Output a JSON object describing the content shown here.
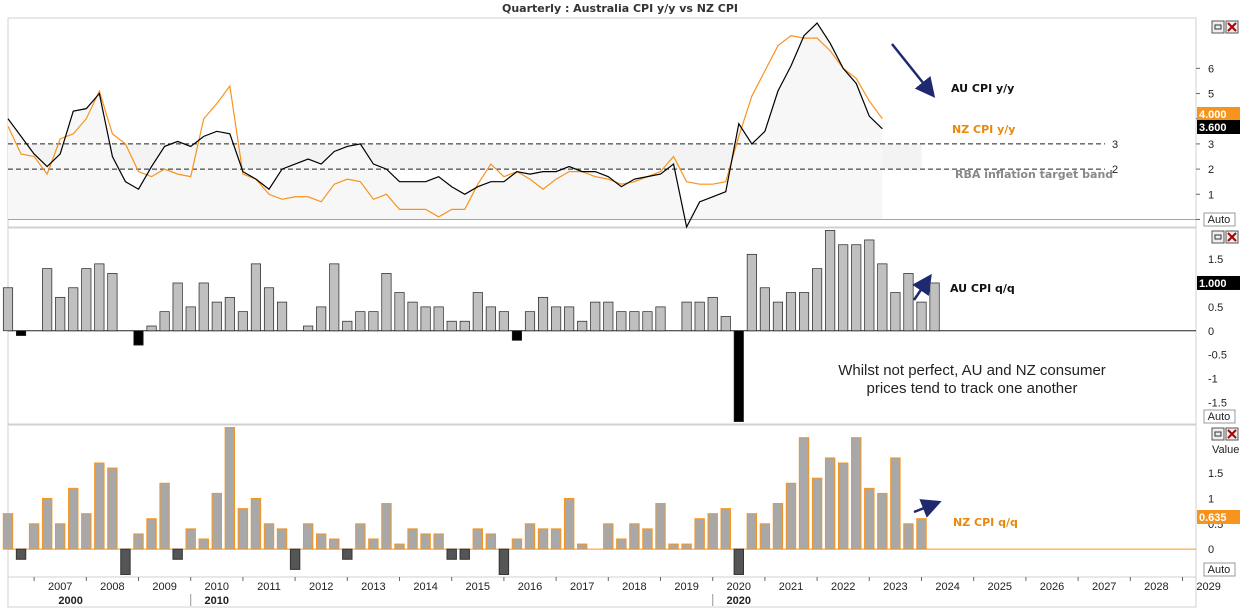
{
  "chart_data": [
    {
      "type": "line",
      "title": "Quarterly : Australia CPI y/y vs NZ CPI",
      "x_start": 2006.5,
      "x_step": 0.25,
      "ylim": [
        -0.3,
        8.0
      ],
      "y_ticks": [
        0,
        1,
        2,
        3,
        4,
        5,
        6
      ],
      "series": [
        {
          "name": "AU CPI y/y",
          "color": "#000000",
          "last_value": "3.600",
          "values": [
            4.0,
            3.3,
            2.6,
            2.1,
            2.6,
            4.3,
            4.4,
            5.0,
            2.5,
            1.5,
            1.2,
            2.1,
            2.9,
            3.1,
            2.9,
            3.3,
            3.5,
            3.4,
            1.9,
            1.6,
            1.2,
            2.0,
            2.2,
            2.4,
            2.2,
            2.7,
            2.9,
            3.0,
            2.2,
            2.0,
            1.5,
            1.5,
            1.5,
            1.7,
            1.3,
            1.0,
            1.3,
            1.5,
            1.5,
            1.9,
            1.8,
            1.9,
            1.9,
            2.1,
            1.9,
            1.9,
            1.7,
            1.3,
            1.6,
            1.7,
            1.8,
            2.2,
            -0.3,
            0.7,
            0.9,
            1.1,
            3.8,
            3.0,
            3.5,
            5.1,
            6.1,
            7.3,
            7.8,
            7.0,
            6.0,
            5.4,
            4.1,
            3.6
          ]
        },
        {
          "name": "NZ CPI y/y",
          "color": "#f7941d",
          "last_value": "4.000",
          "values": [
            3.7,
            2.6,
            2.5,
            1.8,
            3.2,
            3.4,
            4.0,
            5.1,
            3.4,
            3.0,
            1.9,
            1.7,
            2.0,
            1.8,
            1.7,
            4.0,
            4.6,
            5.3,
            1.8,
            1.6,
            1.0,
            0.8,
            0.9,
            0.9,
            0.7,
            1.4,
            1.6,
            1.5,
            0.8,
            1.0,
            0.4,
            0.4,
            0.4,
            0.1,
            0.4,
            0.4,
            1.4,
            2.2,
            1.7,
            1.9,
            1.6,
            1.2,
            1.6,
            1.9,
            1.9,
            1.7,
            1.6,
            1.4,
            1.5,
            1.7,
            1.9,
            2.5,
            1.5,
            1.4,
            1.4,
            1.5,
            3.3,
            4.9,
            5.9,
            6.9,
            7.3,
            7.2,
            7.2,
            6.7,
            6.0,
            5.6,
            4.7,
            4.0
          ]
        }
      ],
      "reference_lines": [
        {
          "label": "3",
          "value": 3
        },
        {
          "label": "2",
          "value": 2
        }
      ],
      "band_label": "RBA inflation target band",
      "footer": "Auto"
    },
    {
      "type": "bar",
      "x_start": 2006.5,
      "x_step": 0.25,
      "ylim": [
        -1.95,
        2.15
      ],
      "y_ticks": [
        "1.5",
        "1",
        "0.5",
        "0",
        "-0.5",
        "-1",
        "-1.5"
      ],
      "series": [
        {
          "name": "AU CPI q/q",
          "color": "#c0c0c0",
          "last_value": "1.000",
          "values": [
            0.9,
            -0.1,
            null,
            1.3,
            0.7,
            0.9,
            1.3,
            1.4,
            1.2,
            null,
            -0.3,
            0.1,
            0.4,
            1.0,
            0.5,
            1.0,
            0.6,
            0.7,
            0.4,
            1.4,
            0.9,
            0.6,
            null,
            0.1,
            0.5,
            1.4,
            0.2,
            0.4,
            0.4,
            1.2,
            0.8,
            0.6,
            0.5,
            0.5,
            0.2,
            0.2,
            0.8,
            0.5,
            0.4,
            -0.2,
            0.4,
            0.7,
            0.5,
            0.5,
            0.2,
            0.6,
            0.6,
            0.4,
            0.4,
            0.4,
            0.5,
            null,
            0.6,
            0.6,
            0.7,
            0.3,
            -1.9,
            1.6,
            0.9,
            0.6,
            0.8,
            0.8,
            1.3,
            2.1,
            1.8,
            1.8,
            1.9,
            1.4,
            0.8,
            1.2,
            0.6,
            1.0
          ]
        }
      ],
      "annotation": "Whilst not perfect, AU and NZ consumer prices tend to track one another",
      "footer": "Auto"
    },
    {
      "type": "bar",
      "x_start": 2006.5,
      "x_step": 0.25,
      "ylim": [
        -0.55,
        2.45
      ],
      "y_ticks": [
        "1.5",
        "1",
        "0.5",
        "0"
      ],
      "value_label": "Value",
      "series": [
        {
          "name": "NZ CPI q/q",
          "color": "#a8a8a8",
          "edge": "#f7941d",
          "last_value": "0.635",
          "values": [
            0.7,
            -0.2,
            0.5,
            1.0,
            0.5,
            1.2,
            0.7,
            1.7,
            1.6,
            -0.5,
            0.3,
            0.6,
            1.3,
            -0.2,
            0.4,
            0.2,
            1.1,
            2.4,
            0.8,
            1.0,
            0.5,
            0.4,
            -0.4,
            0.5,
            0.3,
            0.2,
            -0.2,
            0.5,
            0.2,
            0.9,
            0.1,
            0.4,
            0.3,
            0.3,
            -0.2,
            -0.2,
            0.4,
            0.3,
            -0.5,
            0.2,
            0.5,
            0.4,
            0.4,
            1.0,
            0.1,
            null,
            0.5,
            0.2,
            0.5,
            0.4,
            0.9,
            0.1,
            0.1,
            0.6,
            0.7,
            0.8,
            -0.5,
            0.7,
            0.5,
            0.9,
            1.3,
            2.2,
            1.4,
            1.8,
            1.7,
            2.2,
            1.2,
            1.1,
            1.8,
            0.5,
            0.6
          ]
        }
      ],
      "footer": "Auto"
    }
  ],
  "x_axis": {
    "years": [
      "2007",
      "2008",
      "2009",
      "2010",
      "2011",
      "2012",
      "2013",
      "2014",
      "2015",
      "2016",
      "2017",
      "2018",
      "2019",
      "2020",
      "2021",
      "2022",
      "2023",
      "2024",
      "2025",
      "2026",
      "2027",
      "2028",
      "2029"
    ],
    "decades": [
      "2000",
      "2010",
      "2020"
    ]
  },
  "colors": {
    "au": "#000000",
    "nz": "#f7941d",
    "arrow": "#1f2a6e",
    "band": "#f3f3f3"
  },
  "icons": [
    "minimize-icon",
    "close-icon"
  ]
}
